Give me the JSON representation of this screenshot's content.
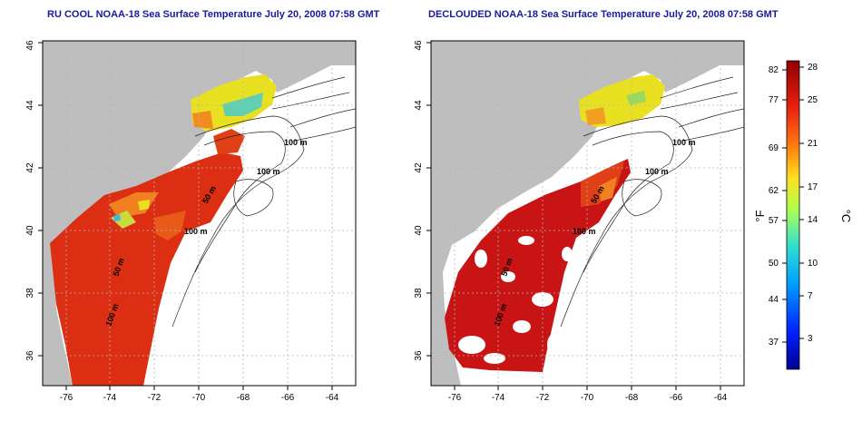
{
  "panels": [
    {
      "title": "RU COOL NOAA-18 Sea Surface Temperature July 20, 2008 07:58 GMT",
      "x_ticks": [
        "-76",
        "-74",
        "-72",
        "-70",
        "-68",
        "-66",
        "-64"
      ],
      "y_ticks": [
        "36",
        "38",
        "40",
        "42",
        "44",
        "46"
      ],
      "contour_labels": [
        "100 m",
        "100 m",
        "50 m",
        "100 m",
        "50 m",
        "100 m"
      ]
    },
    {
      "title": "DECLOUDED NOAA-18 Sea Surface Temperature July 20, 2008 07:58 GMT",
      "x_ticks": [
        "-76",
        "-74",
        "-72",
        "-70",
        "-68",
        "-66",
        "-64"
      ],
      "y_ticks": [
        "36",
        "38",
        "40",
        "42",
        "44",
        "46"
      ],
      "contour_labels": [
        "100 m",
        "100 m",
        "50 m",
        "100 m",
        "50 m",
        "100 m"
      ]
    }
  ],
  "colorbar": {
    "f_ticks": [
      "82",
      "77",
      "69",
      "62",
      "57",
      "50",
      "44",
      "37"
    ],
    "c_ticks": [
      "28",
      "25",
      "21",
      "17",
      "14",
      "10",
      "7",
      "3"
    ],
    "f_unit": "°F",
    "c_unit": "°C"
  },
  "colors": {
    "land": "#bebebe",
    "warm": "#d62010",
    "deep_red": "#b80a0a",
    "yellow": "#e8e020",
    "title": "#1a1a9c"
  }
}
